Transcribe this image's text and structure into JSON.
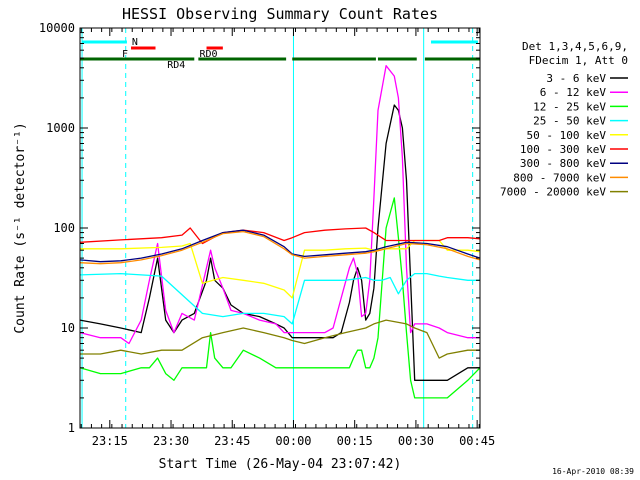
{
  "chart_data": {
    "type": "line",
    "title": "HESSI Observing Summary Count Rates",
    "xlabel": "Start Time (26-May-04 23:07:42)",
    "ylabel": "Count Rate (s⁻¹ detector⁻¹)",
    "y_scale": "log",
    "ylim": [
      1,
      10000
    ],
    "y_ticks": [
      "1",
      "10",
      "100",
      "1000",
      "10000"
    ],
    "x_range_minutes": [
      0,
      98
    ],
    "x_ticks": [
      {
        "minute": 7.3,
        "label": "23:15"
      },
      {
        "minute": 22.3,
        "label": "23:30"
      },
      {
        "minute": 37.3,
        "label": "23:45"
      },
      {
        "minute": 52.3,
        "label": "00:00"
      },
      {
        "minute": 67.3,
        "label": "00:15"
      },
      {
        "minute": 82.3,
        "label": "00:30"
      },
      {
        "minute": 97.3,
        "label": "00:45"
      }
    ],
    "grid": false,
    "legend_position": "right",
    "legend_header": [
      "Det 1,3,4,5,6,9,",
      "FDecim 1, Att 0"
    ],
    "series": [
      {
        "name": "3 - 6 keV",
        "color": "#000000",
        "x": [
          0,
          5,
          10,
          15,
          17,
          19,
          21,
          23,
          25,
          28,
          31,
          32,
          33,
          35,
          37,
          40,
          44,
          48,
          50,
          52,
          55,
          60,
          62,
          64,
          66,
          67,
          68,
          69,
          70,
          71,
          72,
          73,
          75,
          77,
          78,
          79,
          80,
          81,
          82,
          85,
          88,
          90,
          95,
          98
        ],
        "y": [
          12,
          11,
          10,
          9,
          20,
          50,
          12,
          9,
          12,
          14,
          30,
          50,
          30,
          25,
          17,
          14,
          13,
          11,
          10,
          8,
          8,
          8,
          8,
          9,
          18,
          30,
          40,
          30,
          12,
          14,
          25,
          100,
          700,
          1700,
          1500,
          1000,
          300,
          30,
          3,
          3,
          3,
          3,
          4,
          4
        ]
      },
      {
        "name": "6 - 12 keV",
        "color": "#ff00ff",
        "x": [
          0,
          5,
          10,
          12,
          15,
          17,
          19,
          21,
          23,
          25,
          28,
          31,
          32,
          33,
          35,
          37,
          40,
          44,
          48,
          50,
          52,
          55,
          60,
          62,
          64,
          66,
          67,
          68,
          69,
          70,
          71,
          72,
          73,
          75,
          77,
          78,
          79,
          80,
          81,
          82,
          85,
          88,
          90,
          95,
          98
        ],
        "y": [
          9,
          8,
          8,
          7,
          12,
          30,
          70,
          15,
          9,
          14,
          12,
          40,
          60,
          40,
          25,
          15,
          14,
          12,
          11,
          9,
          9,
          9,
          9,
          10,
          20,
          40,
          50,
          35,
          13,
          14,
          30,
          200,
          1500,
          4200,
          3300,
          2000,
          500,
          40,
          9,
          11,
          11,
          10,
          9,
          8,
          8
        ]
      },
      {
        "name": "12 - 25 keV",
        "color": "#00ff00",
        "x": [
          0,
          5,
          10,
          15,
          17,
          19,
          21,
          23,
          25,
          28,
          31,
          32,
          33,
          35,
          37,
          40,
          44,
          48,
          50,
          52,
          55,
          60,
          62,
          64,
          66,
          67,
          68,
          69,
          70,
          71,
          72,
          73,
          75,
          77,
          78,
          79,
          80,
          81,
          82,
          85,
          88,
          90,
          95,
          98
        ],
        "y": [
          4,
          3.5,
          3.5,
          4,
          4,
          5,
          3.5,
          3,
          4,
          4,
          4,
          9,
          5,
          4,
          4,
          6,
          5,
          4,
          4,
          4,
          4,
          4,
          4,
          4,
          4,
          5,
          6,
          6,
          4,
          4,
          5,
          8,
          100,
          200,
          80,
          30,
          9,
          3,
          2,
          2,
          2,
          2,
          3,
          4
        ]
      },
      {
        "name": "25 - 50 keV",
        "color": "#00ffff",
        "x": [
          0,
          10,
          20,
          30,
          35,
          40,
          45,
          50,
          52,
          55,
          60,
          65,
          70,
          72,
          74,
          76,
          78,
          80,
          82,
          85,
          88,
          90,
          95,
          98
        ],
        "y": [
          34,
          35,
          33,
          14,
          13,
          14,
          14,
          13,
          11,
          30,
          30,
          30,
          32,
          30,
          30,
          32,
          22,
          30,
          35,
          35,
          33,
          32,
          30,
          30
        ]
      },
      {
        "name": "50 - 100 keV",
        "color": "#ffff00",
        "x": [
          0,
          10,
          20,
          25,
          27,
          30,
          35,
          40,
          45,
          50,
          52,
          55,
          60,
          65,
          70,
          72,
          75,
          80,
          82,
          85,
          88,
          90,
          95,
          98
        ],
        "y": [
          62,
          62,
          64,
          66,
          70,
          28,
          32,
          30,
          28,
          24,
          20,
          60,
          60,
          62,
          63,
          60,
          62,
          62,
          75,
          75,
          75,
          60,
          60,
          58
        ]
      },
      {
        "name": "100 - 300 keV",
        "color": "#ff0000",
        "x": [
          0,
          10,
          20,
          25,
          27,
          30,
          35,
          40,
          45,
          50,
          52,
          55,
          60,
          65,
          70,
          72,
          75,
          80,
          82,
          85,
          88,
          90,
          95,
          98
        ],
        "y": [
          72,
          76,
          80,
          85,
          100,
          70,
          90,
          95,
          90,
          75,
          80,
          90,
          95,
          98,
          100,
          90,
          75,
          75,
          75,
          75,
          75,
          80,
          80,
          78
        ]
      },
      {
        "name": "300 - 800 keV",
        "color": "#000080",
        "x": [
          0,
          5,
          10,
          15,
          20,
          25,
          30,
          35,
          40,
          45,
          50,
          52,
          55,
          60,
          65,
          70,
          72,
          75,
          80,
          85,
          90,
          95,
          98
        ],
        "y": [
          48,
          46,
          47,
          50,
          55,
          62,
          75,
          90,
          95,
          85,
          65,
          55,
          52,
          54,
          56,
          58,
          60,
          65,
          72,
          70,
          65,
          55,
          50
        ]
      },
      {
        "name": "800 - 7000 keV",
        "color": "#ff8c00",
        "x": [
          0,
          5,
          10,
          15,
          20,
          25,
          30,
          35,
          40,
          45,
          50,
          52,
          55,
          60,
          65,
          70,
          72,
          75,
          80,
          85,
          90,
          95,
          98
        ],
        "y": [
          45,
          44,
          45,
          48,
          53,
          60,
          72,
          88,
          92,
          82,
          62,
          54,
          50,
          52,
          54,
          56,
          58,
          62,
          70,
          68,
          62,
          52,
          48
        ]
      },
      {
        "name": "7000 - 20000 keV",
        "color": "#808000",
        "x": [
          0,
          5,
          10,
          15,
          20,
          25,
          30,
          35,
          40,
          45,
          50,
          52,
          55,
          60,
          65,
          70,
          72,
          75,
          80,
          82,
          85,
          88,
          90,
          95,
          98
        ],
        "y": [
          5.5,
          5.5,
          6,
          5.5,
          6,
          6,
          8,
          9,
          10,
          9,
          8,
          7.5,
          7,
          8,
          9,
          10,
          11,
          12,
          11,
          10,
          9,
          5,
          5.5,
          6,
          6
        ]
      }
    ],
    "annotations": {
      "bars": [
        {
          "label": "N",
          "color": "#00ffff",
          "segments": [
            [
              0.5,
              11.5
            ],
            [
              86,
              97.5
            ]
          ]
        },
        {
          "label": "F",
          "color": "#ff0000",
          "segments": [
            [
              12.5,
              18.5
            ]
          ]
        },
        {
          "label": "RD0",
          "color": "#ff0000",
          "segments": [
            [
              31,
              35
            ]
          ]
        },
        {
          "label": "RD4",
          "color": "#006400",
          "segments": [
            [
              0,
              28
            ],
            [
              29,
              50.5
            ],
            [
              52,
              72.5
            ],
            [
              73,
              82.5
            ],
            [
              84.5,
              98
            ]
          ]
        }
      ],
      "vertical_markers": [
        {
          "minute": 0.5,
          "color": "#00ffff",
          "style": "solid"
        },
        {
          "minute": 11.2,
          "color": "#00ffff",
          "style": "dashed"
        },
        {
          "minute": 52.3,
          "color": "#00ffff",
          "style": "solid"
        },
        {
          "minute": 84.2,
          "color": "#00ffff",
          "style": "solid"
        },
        {
          "minute": 96.2,
          "color": "#00ffff",
          "style": "dashed"
        }
      ]
    }
  },
  "footer_timestamp": "16-Apr-2010 08:39"
}
